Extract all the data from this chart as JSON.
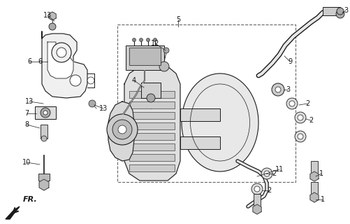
{
  "bg_color": "#ffffff",
  "line_color": "#1a1a1a",
  "gray_fill": "#e8e8e8",
  "mid_gray": "#c0c0c0",
  "dark_gray": "#888888",
  "figsize": [
    5.01,
    3.2
  ],
  "dpi": 100
}
